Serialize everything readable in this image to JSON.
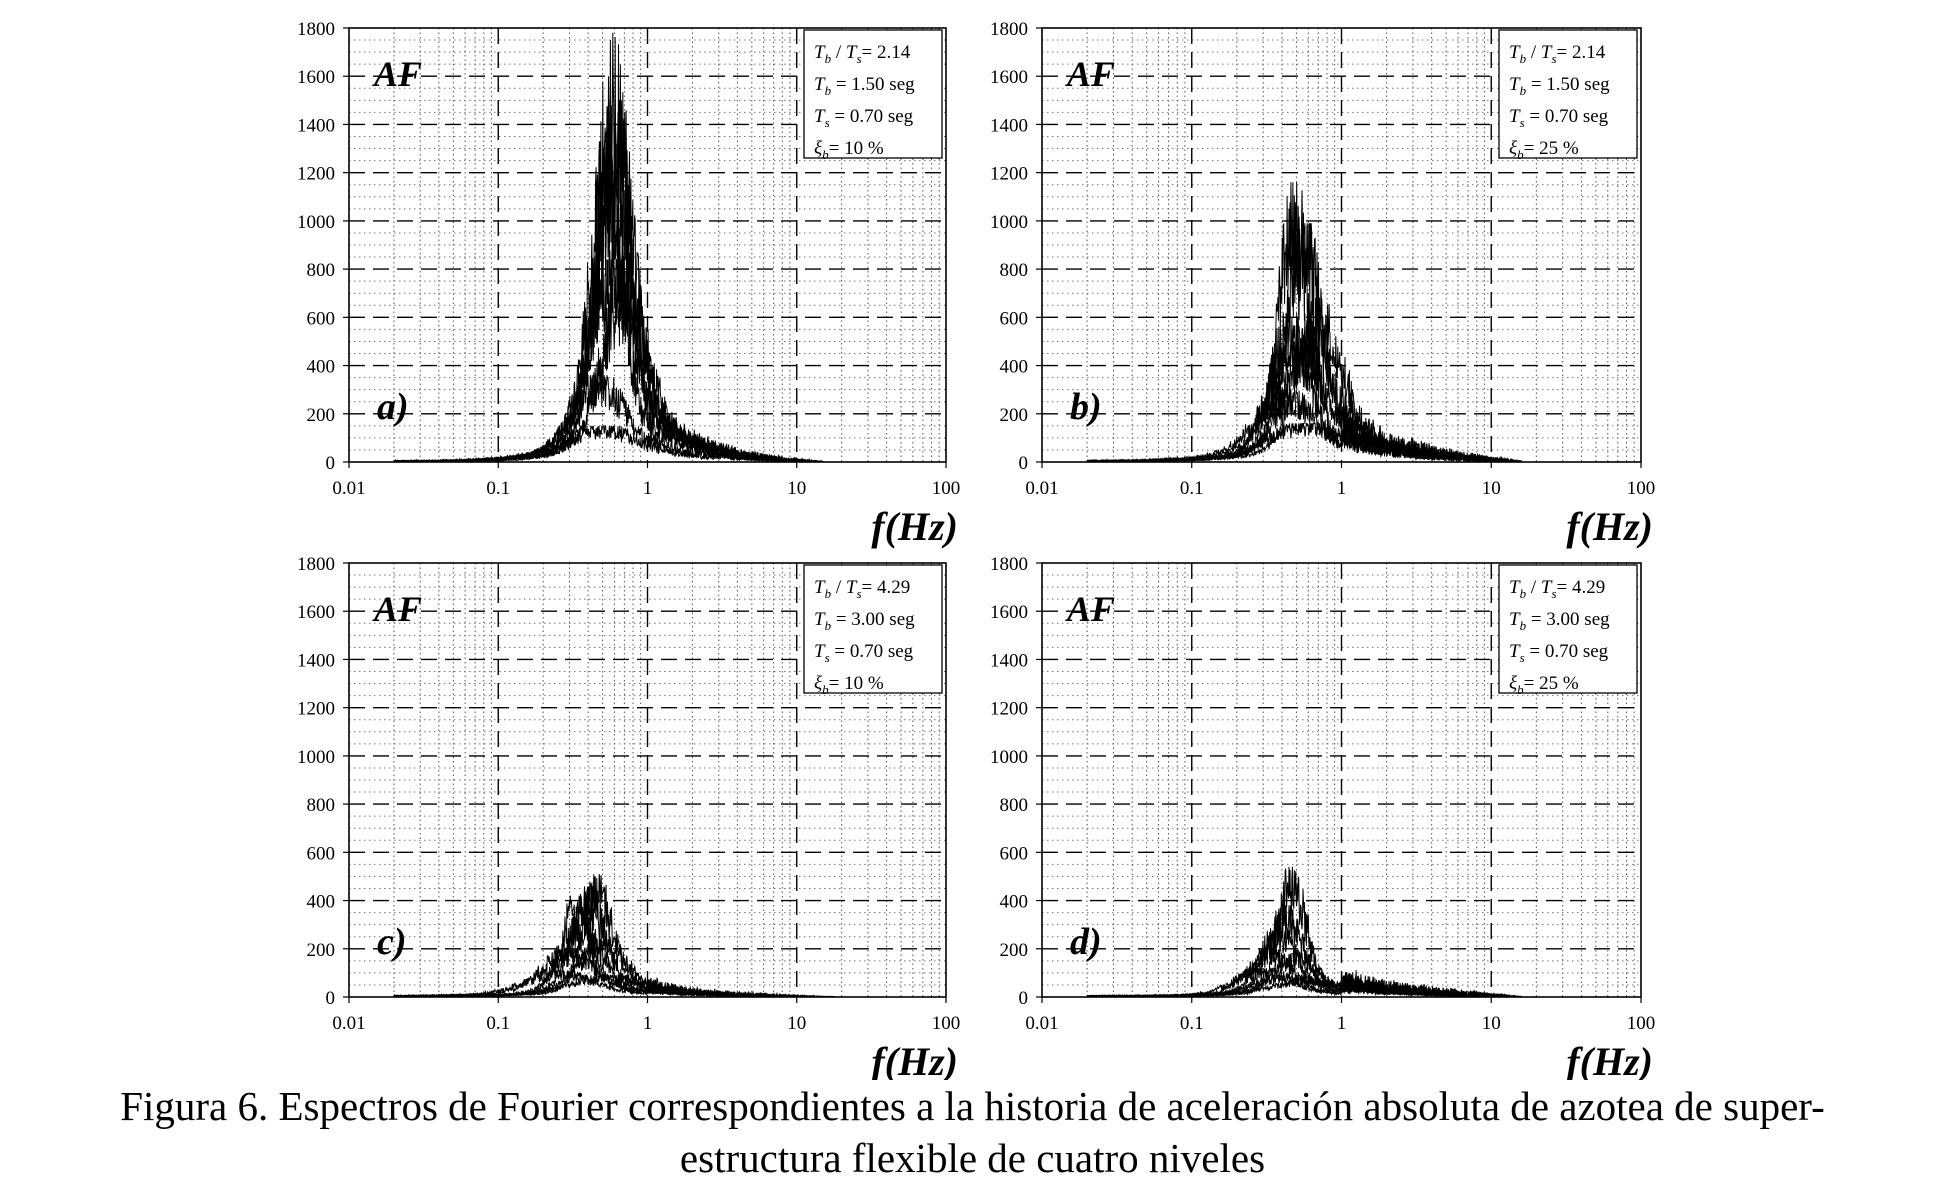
{
  "figure": {
    "caption_line1": "Figura 6. Espectros de Fourier correspondientes a la historia de aceleración absoluta de azotea de super-",
    "caption_line2": "estructura flexible de cuatro niveles"
  },
  "chart_data": [
    {
      "type": "line",
      "panel_label": "a)",
      "corner_label": "AF",
      "xlabel": "f(Hz)",
      "ylabel": "",
      "xscale": "log",
      "xlim": [
        0.01,
        100
      ],
      "ylim": [
        0,
        1800
      ],
      "x_ticks": [
        "0.01",
        "0.1",
        "1",
        "10",
        "100"
      ],
      "y_ticks": [
        "0",
        "200",
        "400",
        "600",
        "800",
        "1000",
        "1200",
        "1400",
        "1600",
        "1800"
      ],
      "grid": true,
      "legend_placement": "top-right",
      "legend_lines": [
        {
          "T1": "T",
          "s1": "b",
          "sep": " / ",
          "T2": "T",
          "s2": "s",
          "rest": "= 2.14"
        },
        {
          "T1": "T",
          "s1": "b",
          "rest": " = 1.50 seg"
        },
        {
          "T1": "T",
          "s1": "s",
          "rest": " = 0.70 seg"
        },
        {
          "T1": "ξ",
          "s1": "b",
          "rest": "= 10 %"
        }
      ],
      "spectra": [
        {
          "peak_f": 0.58,
          "peak_a": 1780,
          "width": 0.1
        },
        {
          "peak_f": 0.62,
          "peak_a": 1500,
          "width": 0.12
        },
        {
          "peak_f": 0.52,
          "peak_a": 1330,
          "width": 0.11
        },
        {
          "peak_f": 0.6,
          "peak_a": 1140,
          "width": 0.14
        },
        {
          "peak_f": 0.56,
          "peak_a": 840,
          "width": 0.16
        },
        {
          "peak_f": 0.7,
          "peak_a": 790,
          "width": 0.15
        },
        {
          "peak_f": 0.47,
          "peak_a": 360,
          "width": 0.18
        },
        {
          "peak_f": 0.5,
          "peak_a": 150,
          "width": 0.22
        }
      ],
      "tail_amplitude": 60,
      "tail_end_f": 15
    },
    {
      "type": "line",
      "panel_label": "b)",
      "corner_label": "AF",
      "xlabel": "f(Hz)",
      "ylabel": "",
      "xscale": "log",
      "xlim": [
        0.01,
        100
      ],
      "ylim": [
        0,
        1800
      ],
      "x_ticks": [
        "0.01",
        "0.1",
        "1",
        "10",
        "100"
      ],
      "y_ticks": [
        "0",
        "200",
        "400",
        "600",
        "800",
        "1000",
        "1200",
        "1400",
        "1600",
        "1800"
      ],
      "grid": true,
      "legend_placement": "top-right",
      "legend_lines": [
        {
          "T1": "T",
          "s1": "b",
          "sep": " / ",
          "T2": "T",
          "s2": "s",
          "rest": "= 2.14"
        },
        {
          "T1": "T",
          "s1": "b",
          "rest": " = 1.50 seg"
        },
        {
          "T1": "T",
          "s1": "s",
          "rest": " = 0.70 seg"
        },
        {
          "T1": "ξ",
          "s1": "b",
          "rest": "= 25 %"
        }
      ],
      "spectra": [
        {
          "peak_f": 0.48,
          "peak_a": 1160,
          "width": 0.1
        },
        {
          "peak_f": 0.56,
          "peak_a": 990,
          "width": 0.12
        },
        {
          "peak_f": 0.7,
          "peak_a": 680,
          "width": 0.14
        },
        {
          "peak_f": 0.45,
          "peak_a": 620,
          "width": 0.13
        },
        {
          "peak_f": 0.62,
          "peak_a": 560,
          "width": 0.16
        },
        {
          "peak_f": 0.52,
          "peak_a": 500,
          "width": 0.18
        },
        {
          "peak_f": 0.42,
          "peak_a": 300,
          "width": 0.2
        },
        {
          "peak_f": 0.55,
          "peak_a": 160,
          "width": 0.24
        }
      ],
      "tail_amplitude": 110,
      "tail_end_f": 16
    },
    {
      "type": "line",
      "panel_label": "c)",
      "corner_label": "AF",
      "xlabel": "f(Hz)",
      "ylabel": "",
      "xscale": "log",
      "xlim": [
        0.01,
        100
      ],
      "ylim": [
        0,
        1800
      ],
      "x_ticks": [
        "0.01",
        "0.1",
        "1",
        "10",
        "100"
      ],
      "y_ticks": [
        "0",
        "200",
        "400",
        "600",
        "800",
        "1000",
        "1200",
        "1400",
        "1600",
        "1800"
      ],
      "grid": true,
      "legend_placement": "top-right",
      "legend_lines": [
        {
          "T1": "T",
          "s1": "b",
          "sep": " / ",
          "T2": "T",
          "s2": "s",
          "rest": "= 4.29"
        },
        {
          "T1": "T",
          "s1": "b",
          "rest": " = 3.00 seg"
        },
        {
          "T1": "T",
          "s1": "s",
          "rest": " = 0.70 seg"
        },
        {
          "T1": "ξ",
          "s1": "b",
          "rest": "= 10 %"
        }
      ],
      "spectra": [
        {
          "peak_f": 0.46,
          "peak_a": 510,
          "width": 0.1
        },
        {
          "peak_f": 0.4,
          "peak_a": 460,
          "width": 0.11
        },
        {
          "peak_f": 0.33,
          "peak_a": 420,
          "width": 0.1
        },
        {
          "peak_f": 0.36,
          "peak_a": 330,
          "width": 0.13
        },
        {
          "peak_f": 0.5,
          "peak_a": 240,
          "width": 0.16
        },
        {
          "peak_f": 0.3,
          "peak_a": 200,
          "width": 0.18
        },
        {
          "peak_f": 0.26,
          "peak_a": 110,
          "width": 0.22
        },
        {
          "peak_f": 0.55,
          "peak_a": 90,
          "width": 0.25
        }
      ],
      "tail_amplitude": 35,
      "tail_end_f": 18
    },
    {
      "type": "line",
      "panel_label": "d)",
      "corner_label": "AF",
      "xlabel": "f(Hz)",
      "ylabel": "",
      "xscale": "log",
      "xlim": [
        0.01,
        100
      ],
      "ylim": [
        0,
        1800
      ],
      "x_ticks": [
        "0.01",
        "0.1",
        "1",
        "10",
        "100"
      ],
      "y_ticks": [
        "0",
        "200",
        "400",
        "600",
        "800",
        "1000",
        "1200",
        "1400",
        "1600",
        "1800"
      ],
      "grid": true,
      "legend_placement": "top-right",
      "legend_lines": [
        {
          "T1": "T",
          "s1": "b",
          "sep": " / ",
          "T2": "T",
          "s2": "s",
          "rest": "= 4.29"
        },
        {
          "T1": "T",
          "s1": "b",
          "rest": " = 3.00 seg"
        },
        {
          "T1": "T",
          "s1": "s",
          "rest": " = 0.70 seg"
        },
        {
          "T1": "ξ",
          "s1": "b",
          "rest": "= 25 %"
        }
      ],
      "spectra": [
        {
          "peak_f": 0.47,
          "peak_a": 540,
          "width": 0.09
        },
        {
          "peak_f": 0.42,
          "peak_a": 380,
          "width": 0.11
        },
        {
          "peak_f": 0.38,
          "peak_a": 300,
          "width": 0.12
        },
        {
          "peak_f": 0.33,
          "peak_a": 200,
          "width": 0.14
        },
        {
          "peak_f": 0.5,
          "peak_a": 180,
          "width": 0.15
        },
        {
          "peak_f": 0.3,
          "peak_a": 120,
          "width": 0.18
        },
        {
          "peak_f": 0.45,
          "peak_a": 90,
          "width": 0.22
        },
        {
          "peak_f": 0.6,
          "peak_a": 70,
          "width": 0.25
        }
      ],
      "tail_amplitude": 90,
      "tail_end_f": 16
    }
  ]
}
